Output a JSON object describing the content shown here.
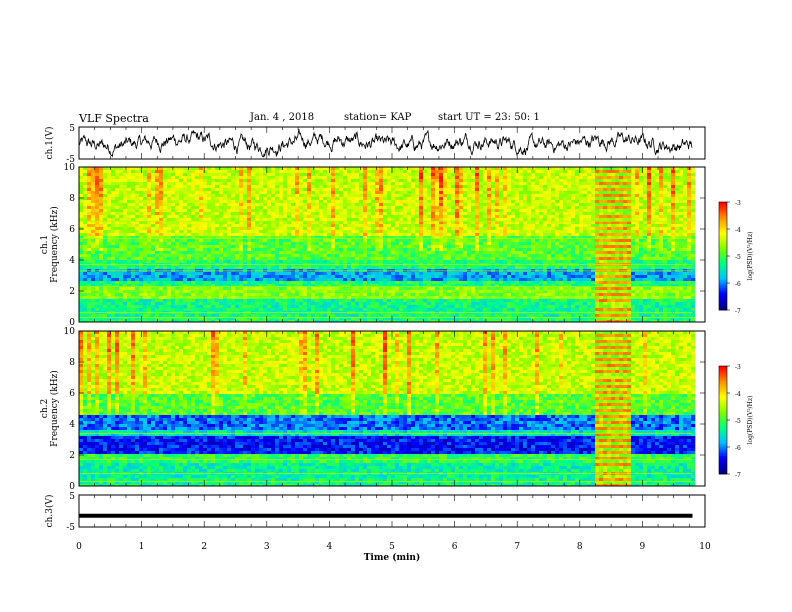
{
  "header": {
    "title": "VLF Spectra",
    "date": "Jan. 4 , 2018",
    "station": "station= KAP",
    "start": "start UT =  23: 50: 1"
  },
  "colors": {
    "trace": "#000000",
    "colormap": [
      "#00007f",
      "#0000ff",
      "#00bfff",
      "#00ff80",
      "#80ff00",
      "#ffff00",
      "#ff9000",
      "#ff0000"
    ]
  },
  "chart_data": [
    {
      "type": "line",
      "panel": "channel-1-waveform",
      "ylabel": "ch.1(V)",
      "ylim": [
        -5,
        5
      ],
      "yticks": [
        "5",
        "-5"
      ],
      "xlim": [
        0,
        10
      ],
      "description_values": "noisy waveform within roughly -4 to 4 V across 0–9.8 min"
    },
    {
      "type": "heatmap",
      "panel": "channel-1-spectrogram",
      "ylabel": "ch.1\nFrequency (kHz)",
      "ylim": [
        0,
        10
      ],
      "yticks": [
        "0",
        "2",
        "4",
        "6",
        "8",
        "10"
      ],
      "xlim": [
        0,
        10
      ],
      "data_end_min": 9.8,
      "colorbar": {
        "label": "log(PSD)(V²/Hz)",
        "range": [
          -7,
          -3
        ],
        "ticks": [
          "-3",
          "-4",
          "-5",
          "-6",
          "-7"
        ]
      },
      "bands": [
        {
          "f": [
            0,
            0.4
          ],
          "level": -5.2
        },
        {
          "f": [
            0.4,
            1.5
          ],
          "level": -5.3
        },
        {
          "f": [
            1.5,
            2.2
          ],
          "level": -4.7
        },
        {
          "f": [
            2.2,
            2.6
          ],
          "level": -5.2
        },
        {
          "f": [
            2.6,
            3.4
          ],
          "level": -5.9
        },
        {
          "f": [
            3.4,
            4.0
          ],
          "level": -5.2
        },
        {
          "f": [
            4.0,
            5.5
          ],
          "level": -4.9
        },
        {
          "f": [
            5.5,
            10
          ],
          "level": -4.4
        }
      ],
      "lines_khz": [
        0.3,
        0.6,
        1.6,
        2.0,
        2.3,
        3.3,
        3.7,
        5.4,
        6.5
      ],
      "disturbance_min": [
        8.2,
        8.8
      ]
    },
    {
      "type": "heatmap",
      "panel": "channel-2-spectrogram",
      "ylabel": "ch.2\nFrequency (kHz)",
      "ylim": [
        0,
        10
      ],
      "yticks": [
        "0",
        "2",
        "4",
        "6",
        "8",
        "10"
      ],
      "xlim": [
        0,
        10
      ],
      "data_end_min": 9.8,
      "colorbar": {
        "label": "log(PSD)(V²/Hz)",
        "range": [
          -7,
          -3
        ],
        "ticks": [
          "-3",
          "-4",
          "-5",
          "-6",
          "-7"
        ]
      },
      "bands": [
        {
          "f": [
            0,
            0.5
          ],
          "level": -5.3
        },
        {
          "f": [
            0.5,
            1.5
          ],
          "level": -5.4
        },
        {
          "f": [
            1.5,
            2.0
          ],
          "level": -5.1
        },
        {
          "f": [
            2.0,
            3.2
          ],
          "level": -6.4
        },
        {
          "f": [
            3.2,
            3.6
          ],
          "level": -5.6
        },
        {
          "f": [
            3.6,
            4.6
          ],
          "level": -6.1
        },
        {
          "f": [
            4.6,
            6.0
          ],
          "level": -4.9
        },
        {
          "f": [
            6.0,
            10
          ],
          "level": -4.4
        }
      ],
      "lines_khz": [
        0.3,
        0.8,
        1.7,
        3.4
      ],
      "disturbance_min": [
        8.2,
        8.8
      ]
    },
    {
      "type": "line",
      "panel": "channel-3-waveform",
      "ylabel": "ch.3(V)",
      "ylim": [
        -5,
        5
      ],
      "yticks": [
        "5",
        "-5"
      ],
      "xlim": [
        0,
        10
      ],
      "x": [
        0,
        9.8
      ],
      "y": [
        -1.5,
        -1.5
      ]
    }
  ],
  "xaxis": {
    "label": "Time (min)",
    "ticks": [
      "0",
      "1",
      "2",
      "3",
      "4",
      "5",
      "6",
      "7",
      "8",
      "9",
      "10"
    ]
  }
}
